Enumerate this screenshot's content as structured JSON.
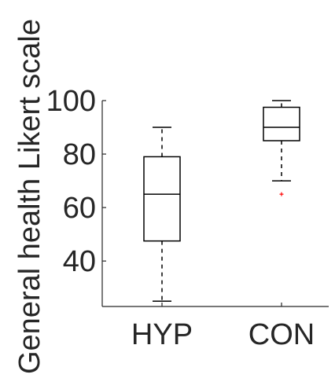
{
  "chart_data": {
    "type": "box",
    "ylabel": "General health Likert scale",
    "xlabel": "",
    "title": "",
    "categories": [
      "HYP",
      "CON"
    ],
    "ylim": [
      23,
      100
    ],
    "yticks": [
      40,
      60,
      80,
      100
    ],
    "grid": false,
    "boxes": [
      {
        "category": "HYP",
        "min": 25,
        "q1": 47.5,
        "median": 65,
        "q3": 79,
        "max": 90,
        "outliers": []
      },
      {
        "category": "CON",
        "min": 70,
        "q1": 85,
        "median": 90,
        "q3": 97.5,
        "max": 100,
        "outliers": [
          65
        ]
      }
    ],
    "colors": {
      "box": "#000000",
      "outlier": "#ff0000",
      "axis": "#262626"
    }
  }
}
